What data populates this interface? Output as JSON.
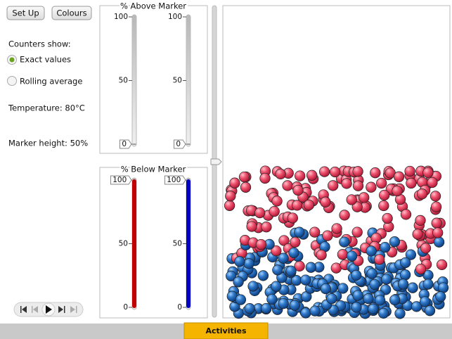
{
  "controls": {
    "setup": "Set Up",
    "colours": "Colours",
    "counters_label": "Counters show:",
    "options": [
      "Exact values",
      "Rolling average"
    ],
    "temperature": "Temperature: 80°C",
    "marker_height": "Marker height: 50%"
  },
  "above": {
    "title": "% Above Marker",
    "scale": [
      0,
      50,
      100
    ],
    "counters": [
      0,
      0
    ]
  },
  "below": {
    "title": "% Below Marker",
    "scale": [
      0,
      50,
      100
    ],
    "counters": [
      100,
      100
    ]
  },
  "footer": {
    "tab": "Activities"
  }
}
